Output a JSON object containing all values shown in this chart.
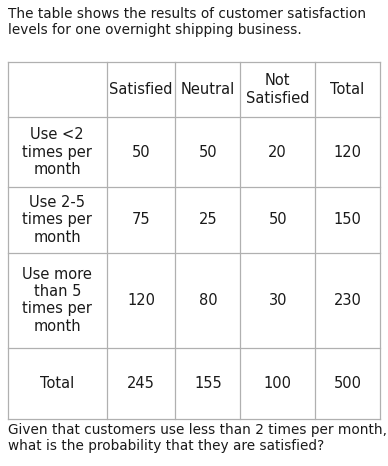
{
  "title_text": "The table shows the results of customer satisfaction\nlevels for one overnight shipping business.",
  "footer_text": "Given that customers use less than 2 times per month,\nwhat is the probability that they are satisfied?",
  "col_headers": [
    "",
    "Satisfied",
    "Neutral",
    "Not\nSatisfied",
    "Total"
  ],
  "row_labels": [
    "Use <2\ntimes per\nmonth",
    "Use 2-5\ntimes per\nmonth",
    "Use more\nthan 5\ntimes per\nmonth",
    "Total"
  ],
  "table_data": [
    [
      "50",
      "50",
      "20",
      "120"
    ],
    [
      "75",
      "25",
      "50",
      "150"
    ],
    [
      "120",
      "80",
      "30",
      "230"
    ],
    [
      "245",
      "155",
      "100",
      "500"
    ]
  ],
  "bg_color": "#ffffff",
  "border_color": "#b0b0b0",
  "text_color": "#1a1a1a",
  "title_fontsize": 9.8,
  "footer_fontsize": 9.8,
  "table_fontsize": 10.5,
  "fig_width": 3.88,
  "fig_height": 4.66,
  "dpi": 100
}
